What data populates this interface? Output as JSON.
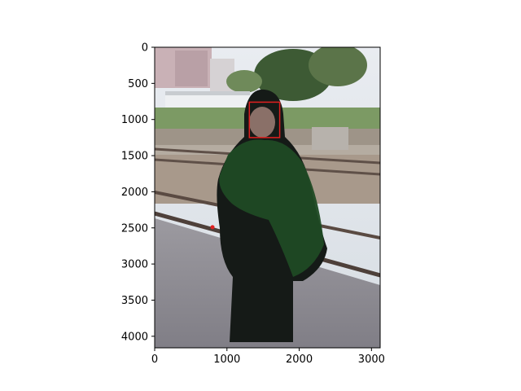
{
  "figure": {
    "photo_description": "woman in dark hijab and green patterned scarf standing on railway platform",
    "x_ticks": [
      "0",
      "1000",
      "2000",
      "3000"
    ],
    "y_ticks": [
      "0",
      "500",
      "1000",
      "1500",
      "2000",
      "2500",
      "3000",
      "3500",
      "4000"
    ],
    "x_range": [
      0,
      3120
    ],
    "y_range": [
      0,
      4160
    ],
    "annotations": {
      "face_box": {
        "x0": 1310,
        "y0": 760,
        "x1": 1730,
        "y1": 1250,
        "color": "#e02020"
      },
      "keypoint": {
        "x": 800,
        "y": 2490,
        "color": "#e02020"
      }
    }
  }
}
